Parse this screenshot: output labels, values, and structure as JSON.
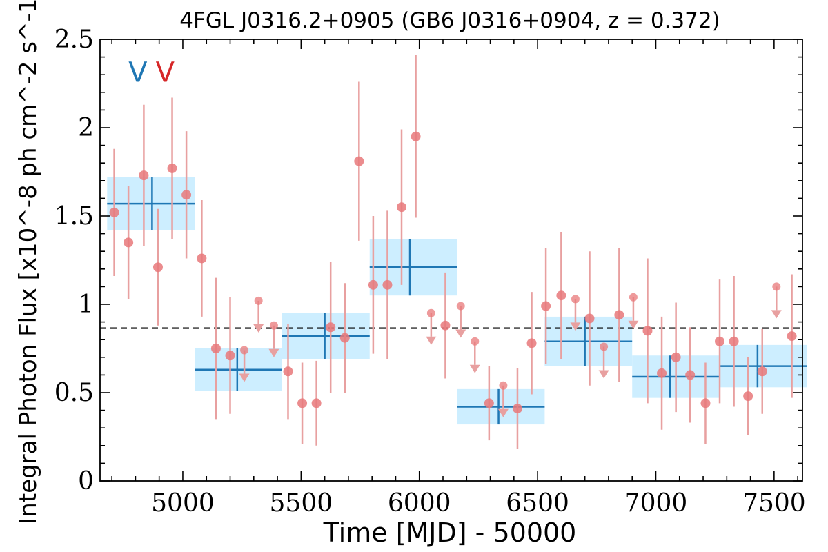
{
  "chart_data": {
    "type": "scatter",
    "title": "4FGL J0316.2+0905 (GB6 J0316+0904, z = 0.372)",
    "xlabel": "Time [MJD] - 50000",
    "ylabel": "Integral Photon Flux [x10^-8 ph cm^-2 s^-1]",
    "xlim": [
      4650,
      7620
    ],
    "ylim": [
      0,
      2.5
    ],
    "xticks": [
      5000,
      5500,
      6000,
      6500,
      7000,
      7500
    ],
    "yticks": [
      0,
      0.5,
      1,
      1.5,
      2,
      2.5
    ],
    "ytick_labels": [
      "0",
      "0.5",
      "1",
      "1.5",
      "2",
      "2.5"
    ],
    "mean_flux": 0.865,
    "markers": [
      {
        "label": "V",
        "x": 4810,
        "color": "#1f77b4"
      },
      {
        "label": "V",
        "x": 4925,
        "color": "#d62728"
      }
    ],
    "colors": {
      "points": "#e8787a",
      "errorbars": "#e8a0a0",
      "bins": "#1f77b4",
      "bin_fill": "#cdeeff",
      "mean_line": "#000000"
    },
    "points": [
      {
        "x": 4710,
        "y": 1.52,
        "yerr": 0.36
      },
      {
        "x": 4770,
        "y": 1.35,
        "yerr": 0.32
      },
      {
        "x": 4835,
        "y": 1.73,
        "yerr": 0.4
      },
      {
        "x": 4895,
        "y": 1.21,
        "yerr": 0.33
      },
      {
        "x": 4955,
        "y": 1.77,
        "yerr": 0.4
      },
      {
        "x": 5015,
        "y": 1.62,
        "yerr": 0.36
      },
      {
        "x": 5080,
        "y": 1.26,
        "yerr": 0.33
      },
      {
        "x": 5140,
        "y": 0.75,
        "yerr": 0.4
      },
      {
        "x": 5200,
        "y": 0.71,
        "yerr": 0.33
      },
      {
        "x": 5260,
        "y": 0.74,
        "ul": true
      },
      {
        "x": 5320,
        "y": 1.02,
        "ul": true
      },
      {
        "x": 5385,
        "y": 0.88,
        "ul": true
      },
      {
        "x": 5445,
        "y": 0.62,
        "yerr": 0.27
      },
      {
        "x": 5505,
        "y": 0.44,
        "yerr": 0.23
      },
      {
        "x": 5565,
        "y": 0.44,
        "yerr": 0.24
      },
      {
        "x": 5625,
        "y": 0.87,
        "yerr": 0.37
      },
      {
        "x": 5685,
        "y": 0.81,
        "yerr": 0.31
      },
      {
        "x": 5745,
        "y": 1.81,
        "yerr": 0.45
      },
      {
        "x": 5805,
        "y": 1.11,
        "yerr": 0.39
      },
      {
        "x": 5865,
        "y": 1.11,
        "yerr": 0.42
      },
      {
        "x": 5925,
        "y": 1.55,
        "yerr": 0.44
      },
      {
        "x": 5985,
        "y": 1.95,
        "yerr": 0.46
      },
      {
        "x": 6050,
        "y": 0.95,
        "ul": true
      },
      {
        "x": 6110,
        "y": 0.88,
        "yerr": 0.3
      },
      {
        "x": 6175,
        "y": 0.99,
        "ul": true
      },
      {
        "x": 6235,
        "y": 0.79,
        "ul": true
      },
      {
        "x": 6295,
        "y": 0.44,
        "yerr": 0.21
      },
      {
        "x": 6355,
        "y": 0.54,
        "ul": true
      },
      {
        "x": 6415,
        "y": 0.41,
        "yerr": 0.23
      },
      {
        "x": 6475,
        "y": 0.78,
        "yerr": 0.29
      },
      {
        "x": 6535,
        "y": 0.99,
        "yerr": 0.33
      },
      {
        "x": 6600,
        "y": 1.05,
        "yerr": 0.36
      },
      {
        "x": 6660,
        "y": 1.03,
        "ul": true
      },
      {
        "x": 6720,
        "y": 0.92,
        "yerr": 0.38
      },
      {
        "x": 6780,
        "y": 0.76,
        "ul": true
      },
      {
        "x": 6845,
        "y": 0.94,
        "yerr": 0.38
      },
      {
        "x": 6905,
        "y": 1.04,
        "ul": true
      },
      {
        "x": 6965,
        "y": 0.85,
        "yerr": 0.41
      },
      {
        "x": 7025,
        "y": 0.61,
        "yerr": 0.32
      },
      {
        "x": 7085,
        "y": 0.7,
        "yerr": 0.31
      },
      {
        "x": 7145,
        "y": 0.6,
        "yerr": 0.27
      },
      {
        "x": 7210,
        "y": 0.44,
        "yerr": 0.23
      },
      {
        "x": 7270,
        "y": 0.79,
        "yerr": 0.35
      },
      {
        "x": 7330,
        "y": 0.79,
        "yerr": 0.37
      },
      {
        "x": 7390,
        "y": 0.48,
        "yerr": 0.22
      },
      {
        "x": 7450,
        "y": 0.62,
        "yerr": 0.24
      },
      {
        "x": 7510,
        "y": 1.1,
        "ul": true
      },
      {
        "x": 7575,
        "y": 0.82,
        "yerr": 0.35
      }
    ],
    "bins": [
      {
        "x0": 4680,
        "x1": 5050,
        "xc": 4870,
        "y": 1.57,
        "yerr": 0.15
      },
      {
        "x0": 5050,
        "x1": 5420,
        "xc": 5230,
        "y": 0.63,
        "yerr": 0.12
      },
      {
        "x0": 5420,
        "x1": 5790,
        "xc": 5600,
        "y": 0.82,
        "yerr": 0.13
      },
      {
        "x0": 5790,
        "x1": 6160,
        "xc": 5960,
        "y": 1.21,
        "yerr": 0.16
      },
      {
        "x0": 6160,
        "x1": 6530,
        "xc": 6335,
        "y": 0.42,
        "yerr": 0.1
      },
      {
        "x0": 6530,
        "x1": 6900,
        "xc": 6700,
        "y": 0.79,
        "yerr": 0.14
      },
      {
        "x0": 6900,
        "x1": 7270,
        "xc": 7060,
        "y": 0.59,
        "yerr": 0.12
      },
      {
        "x0": 7270,
        "x1": 7640,
        "xc": 7430,
        "y": 0.65,
        "yerr": 0.12
      }
    ]
  }
}
